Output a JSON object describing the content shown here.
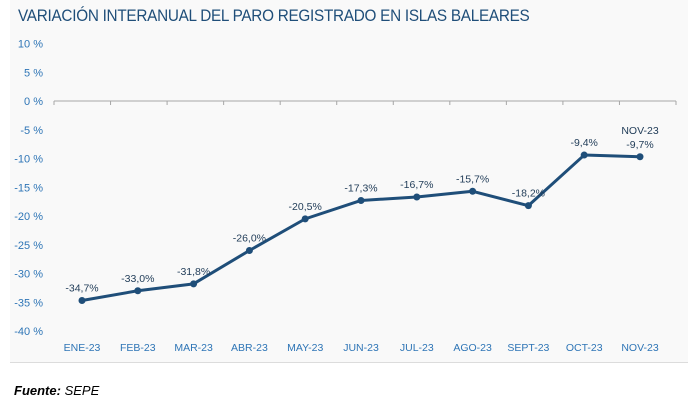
{
  "chart_data": {
    "type": "line",
    "title": "VARIACIÓN INTERANUAL DEL PARO REGISTRADO EN ISLAS BALEARES",
    "categories": [
      "ENE-23",
      "FEB-23",
      "MAR-23",
      "ABR-23",
      "MAY-23",
      "JUN-23",
      "JUL-23",
      "AGO-23",
      "SEPT-23",
      "OCT-23",
      "NOV-23"
    ],
    "series": [
      {
        "name": "Variación interanual",
        "values": [
          -34.7,
          -33.0,
          -31.8,
          -26.0,
          -20.5,
          -17.3,
          -16.7,
          -15.7,
          -18.2,
          -9.4,
          -9.7
        ]
      }
    ],
    "data_labels": [
      "-34,7%",
      "-33,0%",
      "-31,8%",
      "-26,0%",
      "-20,5%",
      "-17,3%",
      "-16,7%",
      "-15,7%",
      "-18,2%",
      "-9,4%",
      "-9,7%"
    ],
    "last_point_category_label": "NOV-23",
    "yticks": [
      10,
      5,
      0,
      -5,
      -10,
      -15,
      -20,
      -25,
      -30,
      -35,
      -40
    ],
    "ytick_labels": [
      "10 %",
      "5 %",
      "0 %",
      "-5 %",
      "-10 %",
      "-15 %",
      "-20 %",
      "-25 %",
      "-30 %",
      "-35 %",
      "-40 %"
    ],
    "ylim": [
      -40,
      10
    ],
    "xlabel": "",
    "ylabel": "",
    "grid": false,
    "colors": {
      "line": "#1f4e79",
      "axis_text": "#2e75b6",
      "labels": "#1f3b57"
    }
  },
  "source": {
    "label": "Fuente:",
    "value": "SEPE"
  }
}
